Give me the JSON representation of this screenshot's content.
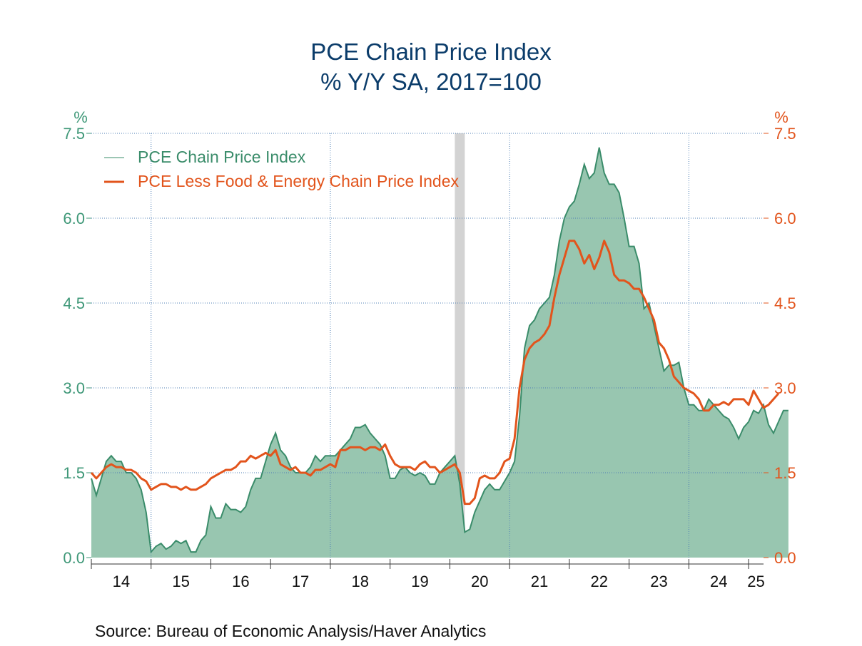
{
  "chart_data": {
    "type": "area",
    "title": "PCE Chain Price Index",
    "subtitle": "% Y/Y   SA, 2017=100",
    "ylabel_left": "%",
    "ylabel_right": "%",
    "ylim": [
      0,
      7.5
    ],
    "y_ticks": [
      "0.0",
      "1.5",
      "3.0",
      "4.5",
      "6.0",
      "7.5"
    ],
    "x_range": [
      "2014-01",
      "2025-04"
    ],
    "x_ticks": [
      "14",
      "15",
      "16",
      "17",
      "18",
      "19",
      "20",
      "21",
      "22",
      "23",
      "24",
      "25"
    ],
    "grid": true,
    "legend_position": "top-left",
    "recession_shading": {
      "start": "2020-02",
      "end": "2020-04"
    },
    "source": "Source:  Bureau of Economic Analysis/Haver Analytics",
    "colors": {
      "headline_fill": "#98c6b0",
      "headline_line": "#3a8c6a",
      "core_line": "#e2541c",
      "left_axis": "#3f9878",
      "right_axis": "#e2541c",
      "title": "#0b3c6a",
      "grid": "#4f7fb5",
      "recession": "#d3d3d3"
    },
    "series": [
      {
        "name": "PCE Chain Price Index",
        "style": "area",
        "axis": "left",
        "start": "2014-01",
        "values": [
          1.4,
          1.1,
          1.4,
          1.7,
          1.8,
          1.7,
          1.7,
          1.5,
          1.5,
          1.4,
          1.2,
          0.8,
          0.1,
          0.2,
          0.25,
          0.15,
          0.2,
          0.3,
          0.25,
          0.3,
          0.1,
          0.1,
          0.3,
          0.4,
          0.9,
          0.7,
          0.7,
          0.95,
          0.85,
          0.85,
          0.8,
          0.9,
          1.2,
          1.4,
          1.4,
          1.7,
          2.0,
          2.2,
          1.9,
          1.8,
          1.6,
          1.5,
          1.5,
          1.5,
          1.6,
          1.8,
          1.7,
          1.8,
          1.8,
          1.8,
          1.9,
          2.0,
          2.1,
          2.3,
          2.3,
          2.35,
          2.2,
          2.1,
          2.0,
          1.8,
          1.4,
          1.4,
          1.55,
          1.6,
          1.5,
          1.45,
          1.5,
          1.45,
          1.3,
          1.3,
          1.5,
          1.6,
          1.7,
          1.8,
          1.3,
          0.45,
          0.5,
          0.8,
          1.0,
          1.2,
          1.3,
          1.2,
          1.2,
          1.35,
          1.5,
          1.7,
          2.5,
          3.7,
          4.1,
          4.2,
          4.4,
          4.5,
          4.6,
          5.0,
          5.6,
          6.0,
          6.2,
          6.3,
          6.6,
          6.95,
          6.7,
          6.8,
          7.25,
          6.8,
          6.6,
          6.6,
          6.45,
          6.0,
          5.5,
          5.5,
          5.2,
          4.4,
          4.5,
          4.1,
          3.7,
          3.3,
          3.4,
          3.4,
          3.45,
          3.0,
          2.7,
          2.7,
          2.6,
          2.6,
          2.8,
          2.7,
          2.6,
          2.5,
          2.45,
          2.3,
          2.1,
          2.3,
          2.4,
          2.6,
          2.55,
          2.7,
          2.35,
          2.2,
          2.4,
          2.6,
          2.6
        ]
      },
      {
        "name": "PCE Less Food & Energy Chain Price Index",
        "style": "line",
        "axis": "right",
        "start": "2014-01",
        "values": [
          1.5,
          1.4,
          1.5,
          1.6,
          1.65,
          1.6,
          1.6,
          1.55,
          1.55,
          1.5,
          1.4,
          1.35,
          1.2,
          1.25,
          1.3,
          1.3,
          1.25,
          1.25,
          1.2,
          1.25,
          1.2,
          1.2,
          1.25,
          1.3,
          1.4,
          1.45,
          1.5,
          1.55,
          1.55,
          1.6,
          1.7,
          1.7,
          1.8,
          1.75,
          1.8,
          1.85,
          1.8,
          1.9,
          1.65,
          1.6,
          1.55,
          1.6,
          1.5,
          1.5,
          1.45,
          1.55,
          1.55,
          1.6,
          1.65,
          1.6,
          1.9,
          1.9,
          1.95,
          1.95,
          1.95,
          1.9,
          1.95,
          1.95,
          1.9,
          2.0,
          1.8,
          1.65,
          1.6,
          1.6,
          1.6,
          1.55,
          1.65,
          1.7,
          1.6,
          1.6,
          1.5,
          1.55,
          1.6,
          1.65,
          1.5,
          0.95,
          0.95,
          1.05,
          1.4,
          1.45,
          1.4,
          1.4,
          1.5,
          1.7,
          1.75,
          2.1,
          3.0,
          3.5,
          3.7,
          3.8,
          3.85,
          3.95,
          4.1,
          4.6,
          5.0,
          5.3,
          5.6,
          5.6,
          5.45,
          5.2,
          5.35,
          5.1,
          5.3,
          5.6,
          5.4,
          5.0,
          4.9,
          4.9,
          4.85,
          4.75,
          4.75,
          4.6,
          4.4,
          4.2,
          3.8,
          3.7,
          3.5,
          3.2,
          3.1,
          3.0,
          2.95,
          2.9,
          2.8,
          2.6,
          2.6,
          2.7,
          2.7,
          2.75,
          2.7,
          2.8,
          2.8,
          2.8,
          2.7,
          2.95,
          2.8,
          2.65,
          2.7,
          2.8,
          2.9
        ]
      }
    ]
  }
}
